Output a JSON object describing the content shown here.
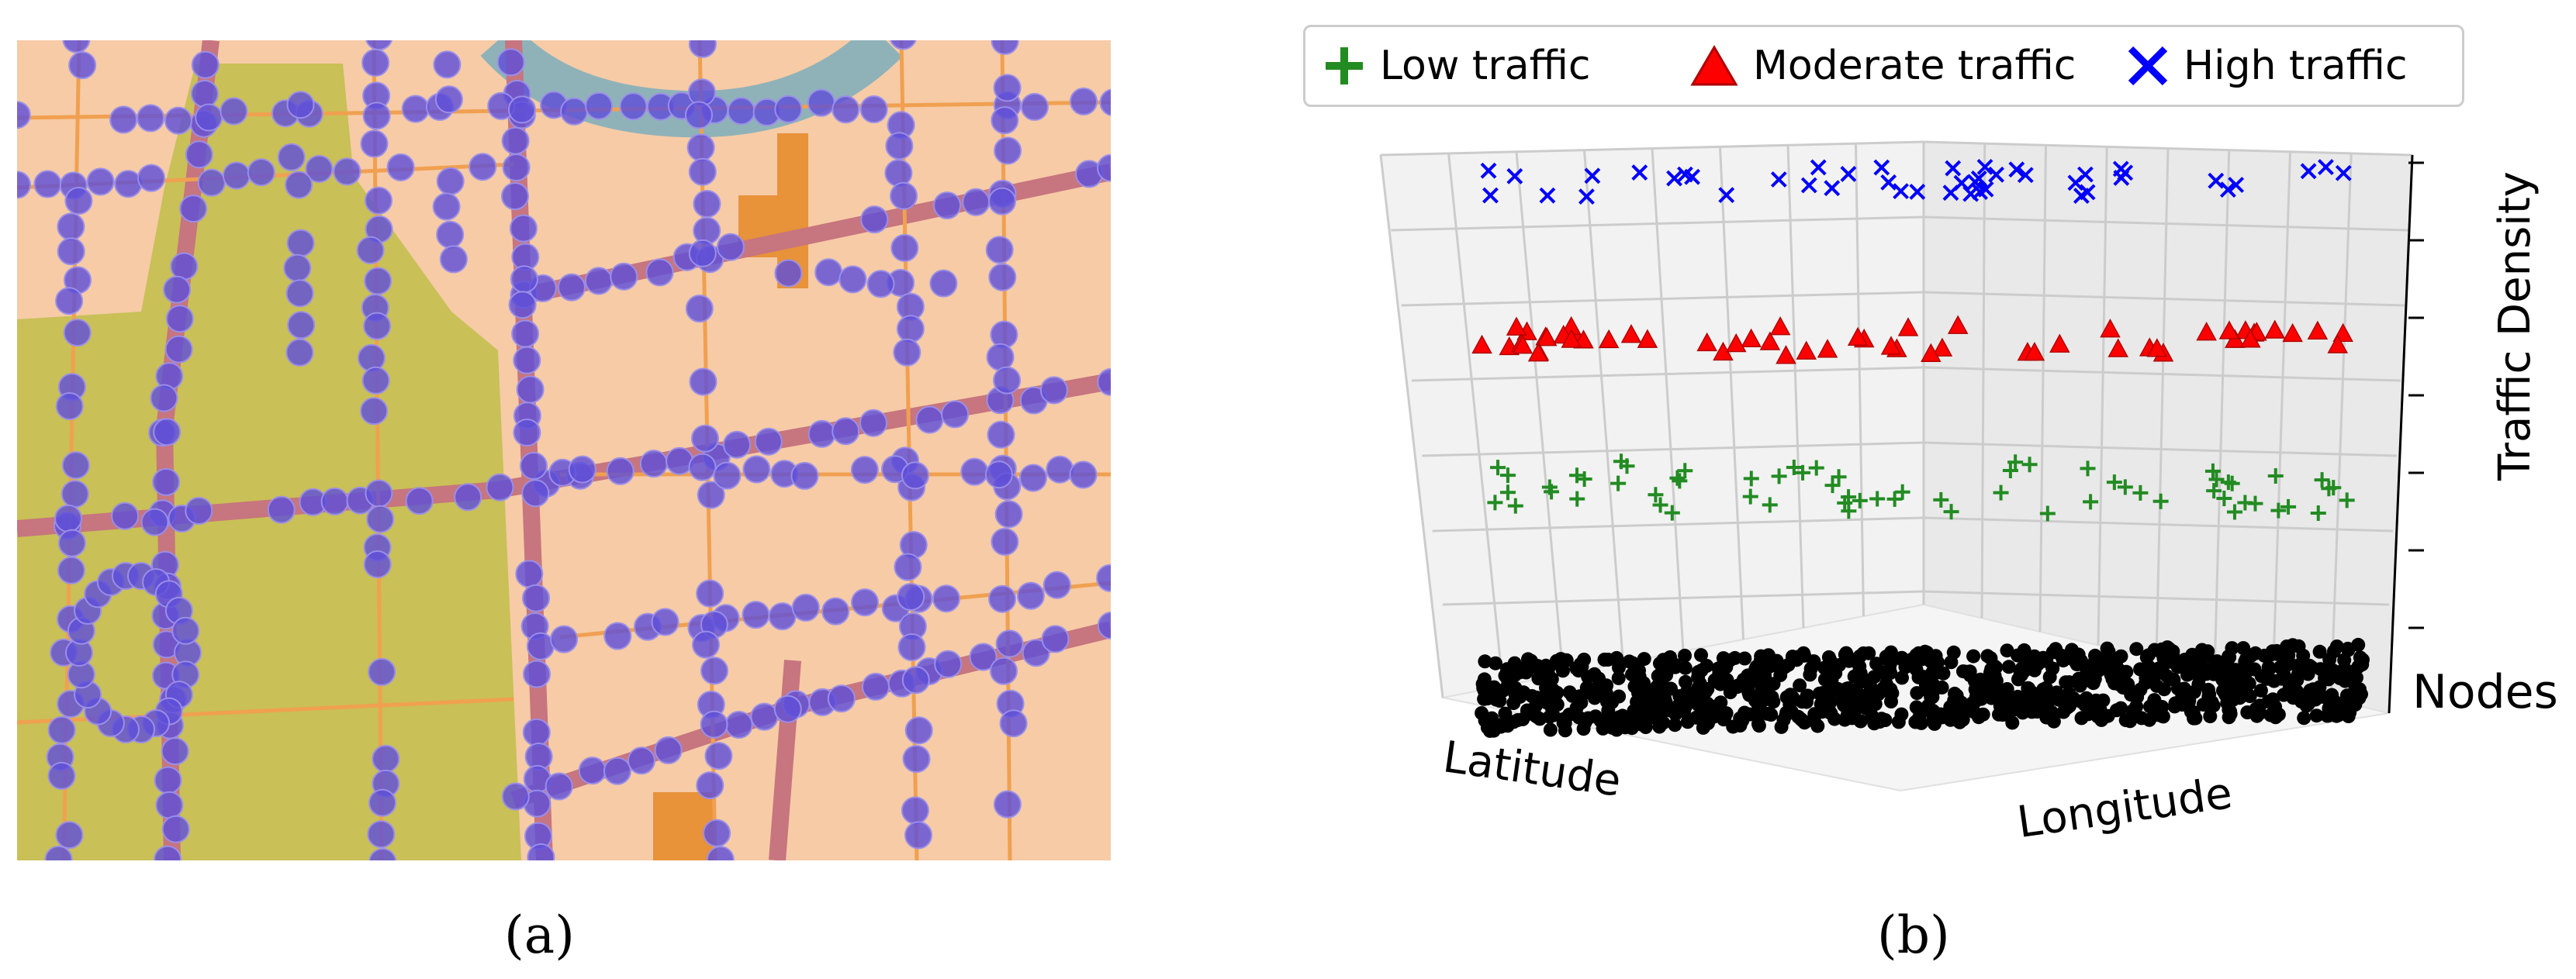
{
  "captions": {
    "a": "(a)",
    "b": "(b)"
  },
  "colors": {
    "map_background": "#f6cba6",
    "park": "#c9c057",
    "river": "#8fb2b9",
    "major_road": "#c7757f",
    "minor_road": "#f0a050",
    "node_marker": "#5f4fd8",
    "low": "#228b22",
    "moderate": "#ff0000",
    "high": "#0000ff",
    "nodes": "#000000"
  },
  "chart_data": {
    "type": "scatter",
    "projection": "3d",
    "legend": [
      {
        "name": "Low traffic",
        "marker": "plus",
        "color": "#228b22"
      },
      {
        "name": "Moderate traffic",
        "marker": "triangle",
        "color": "#ff0000"
      },
      {
        "name": "High traffic",
        "marker": "x",
        "color": "#0000ff"
      }
    ],
    "legend_position": "top",
    "xlabel": "Latitude",
    "ylabel": "Longitude",
    "zlabel": "Traffic Density",
    "z_tick_labels": [
      "Nodes"
    ],
    "grid": true,
    "levels": [
      {
        "name": "Nodes",
        "z": 0,
        "marker": "dot",
        "count": 900
      },
      {
        "name": "Low traffic",
        "z": 1,
        "marker": "plus",
        "count": 65
      },
      {
        "name": "Moderate traffic",
        "z": 2,
        "marker": "triangle",
        "count": 55
      },
      {
        "name": "High traffic",
        "z": 3,
        "marker": "x",
        "count": 45
      }
    ]
  }
}
